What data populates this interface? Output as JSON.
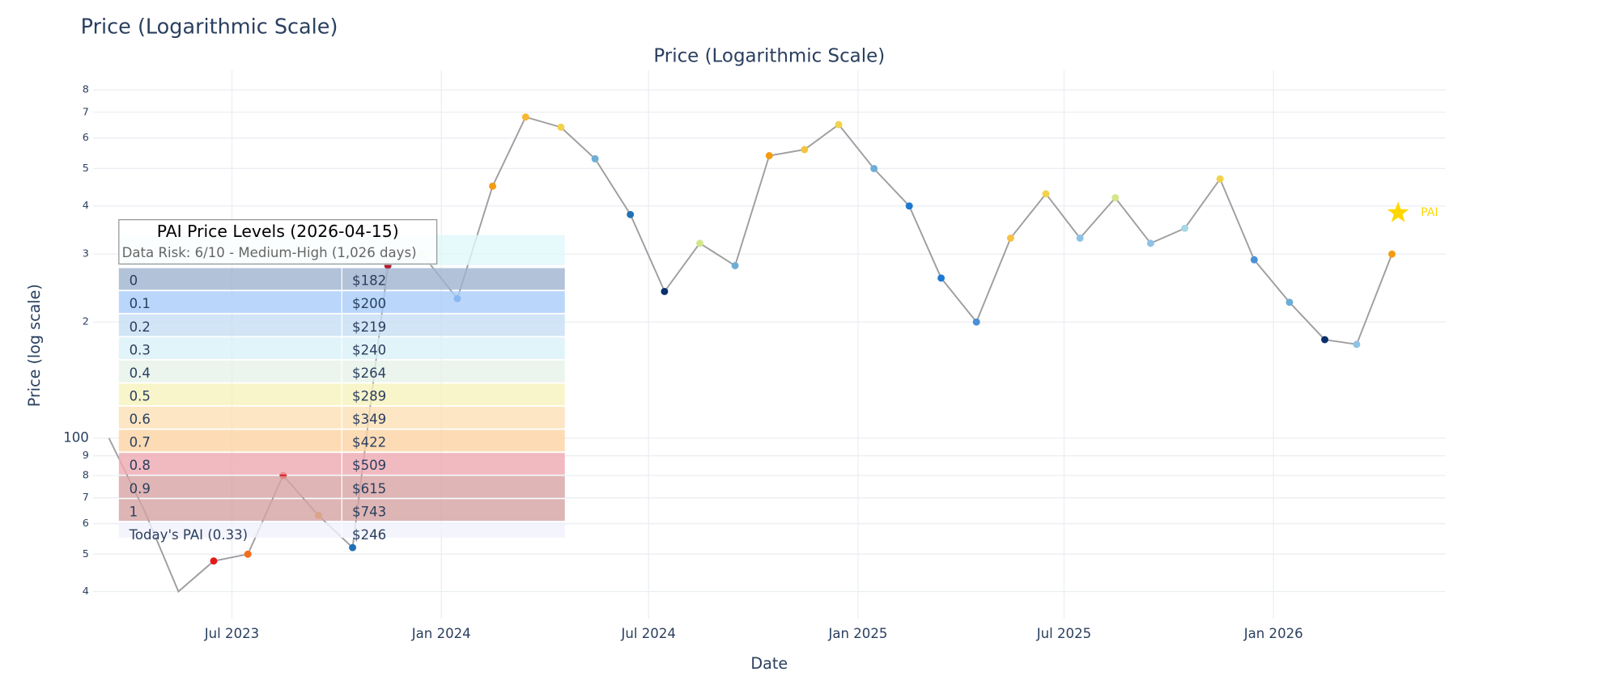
{
  "chart_data": {
    "type": "line",
    "page_title": "Price (Logarithmic Scale)",
    "title": "Price (Logarithmic Scale)",
    "x_label": "Date",
    "y_label": "Price (log scale)",
    "log_y": true,
    "grid": true,
    "line_color": "#9e9e9e",
    "x": [
      "2023-03",
      "2023-04",
      "2023-05",
      "2023-06",
      "2023-07",
      "2023-08",
      "2023-09",
      "2023-10",
      "2023-11",
      "2023-12",
      "2024-01",
      "2024-02",
      "2024-03",
      "2024-04",
      "2024-05",
      "2024-06",
      "2024-07",
      "2024-08",
      "2024-09",
      "2024-10",
      "2024-11",
      "2024-12",
      "2025-01",
      "2025-02",
      "2025-03",
      "2025-04",
      "2025-05",
      "2025-06",
      "2025-07",
      "2025-08",
      "2025-09",
      "2025-10",
      "2025-11",
      "2025-12",
      "2026-01",
      "2026-02",
      "2026-03",
      "2026-04"
    ],
    "values": [
      100,
      65,
      40,
      48,
      50,
      80,
      63,
      52,
      280,
      300,
      230,
      450,
      680,
      640,
      530,
      380,
      240,
      320,
      280,
      540,
      560,
      650,
      500,
      400,
      260,
      200,
      330,
      430,
      330,
      420,
      320,
      350,
      470,
      290,
      225,
      180,
      175,
      300
    ],
    "colors": [
      null,
      null,
      null,
      "#e31a1c",
      "#f46d1b",
      "#d7191c",
      "#f5a623",
      "#2171b5",
      "#b2182b",
      "#f5c242",
      "#1060d0",
      "#f39c12",
      "#f7b733",
      "#f2d24b",
      "#6baed6",
      "#2171b5",
      "#08306b",
      "#d4e68a",
      "#6baed6",
      "#f39c12",
      "#f5c242",
      "#f2d24b",
      "#6baed6",
      "#1f78d1",
      "#1f78d1",
      "#4a90d9",
      "#f5c242",
      "#f2d24b",
      "#8ec3e6",
      "#d4e68a",
      "#8ec3e6",
      "#a6d8e6",
      "#f2d24b",
      "#4a90d9",
      "#6baed6",
      "#08306b",
      "#8ec3e6",
      "#f39c12"
    ],
    "today_label": "PAI",
    "today_color": "#ffd700",
    "xlim": [
      "2023-03",
      "2026-06"
    ],
    "xticks": [
      {
        "value": "2023-07",
        "label": "Jul 2023"
      },
      {
        "value": "2024-01",
        "label": "Jan 2024"
      },
      {
        "value": "2024-07",
        "label": "Jul 2024"
      },
      {
        "value": "2025-01",
        "label": "Jan 2025"
      },
      {
        "value": "2025-07",
        "label": "Jul 2025"
      },
      {
        "value": "2026-01",
        "label": "Jan 2026"
      }
    ],
    "ylim": [
      34,
      900
    ],
    "yticks": [
      {
        "value": 40,
        "label": "4"
      },
      {
        "value": 50,
        "label": "5"
      },
      {
        "value": 60,
        "label": "6"
      },
      {
        "value": 70,
        "label": "7"
      },
      {
        "value": 80,
        "label": "8"
      },
      {
        "value": 90,
        "label": "9"
      },
      100,
      {
        "value": 200,
        "label": "2"
      },
      {
        "value": 300,
        "label": "3"
      },
      {
        "value": 400,
        "label": "4"
      },
      {
        "value": 500,
        "label": "5"
      },
      {
        "value": 600,
        "label": "6"
      },
      {
        "value": 700,
        "label": "7"
      },
      {
        "value": 800,
        "label": "8"
      }
    ]
  },
  "table": {
    "title": "PAI Price Levels (2026-04-15)",
    "subtitle": "Data Risk: 6/10 - Medium-High (1,026 days)",
    "rows": [
      [
        "0",
        "$182"
      ],
      [
        "0.1",
        "$200"
      ],
      [
        "0.2",
        "$219"
      ],
      [
        "0.3",
        "$240"
      ],
      [
        "0.4",
        "$264"
      ],
      [
        "0.5",
        "$289"
      ],
      [
        "0.6",
        "$349"
      ],
      [
        "0.7",
        "$422"
      ],
      [
        "0.8",
        "$509"
      ],
      [
        "0.9",
        "$615"
      ],
      [
        "1",
        "$743"
      ],
      [
        "Today's PAI (0.33)",
        "$246"
      ]
    ],
    "row_colors": [
      "#9fb3cf",
      "#a9cdfa",
      "#c6def4",
      "#d9f1f7",
      "#e6f3ea",
      "#f7f3bd",
      "#fde0b4",
      "#fdd3a3",
      "#eea9b0",
      "#d7a3a3",
      "#d4a2a2",
      "#f1f1fb"
    ]
  }
}
